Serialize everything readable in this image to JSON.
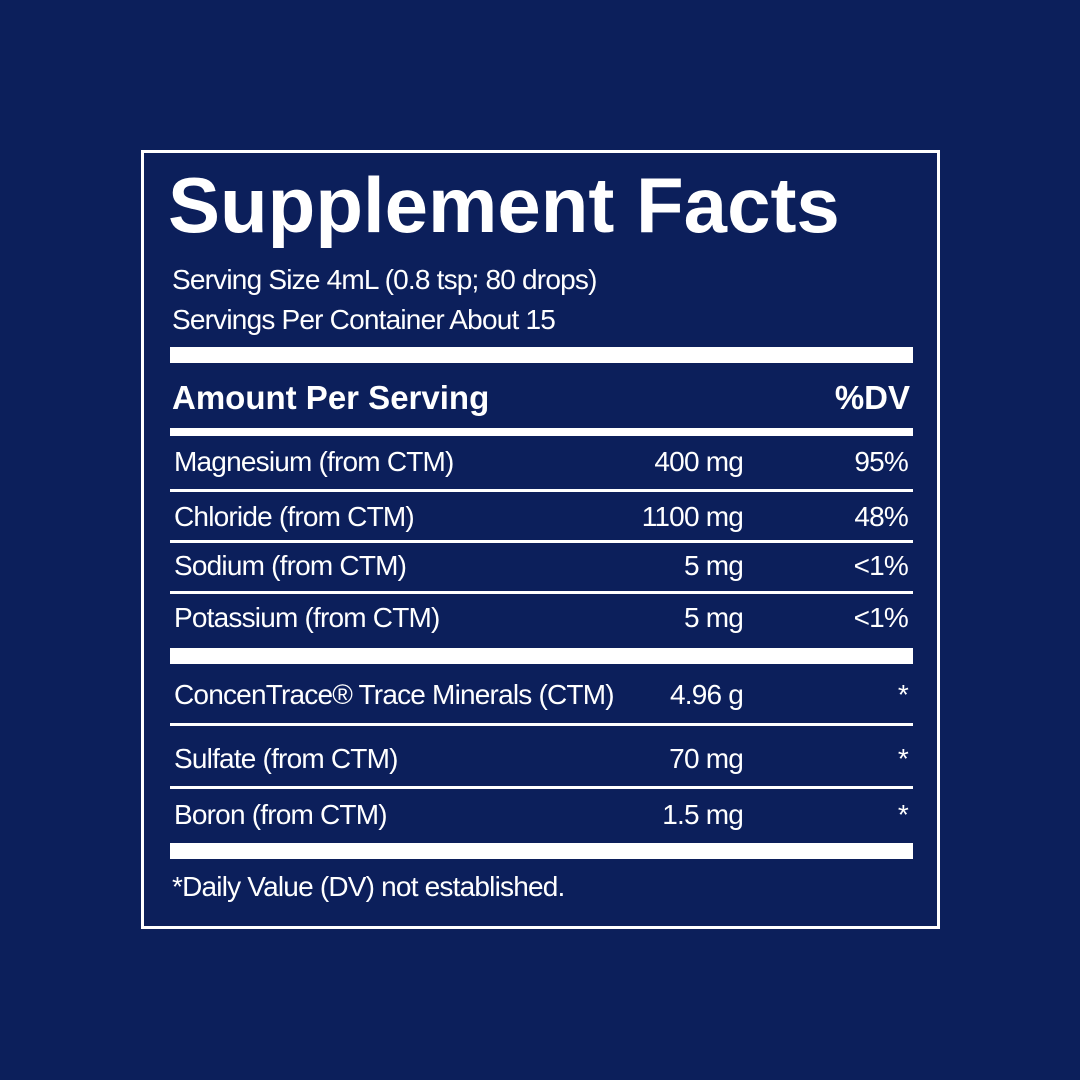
{
  "title": "Supplement Facts",
  "serving_size": "Serving Size 4mL (0.8 tsp; 80 drops)",
  "servings_per_container": "Servings Per Container About 15",
  "header": {
    "amount": "Amount Per Serving",
    "dv": "%DV"
  },
  "rows": [
    [
      "Magnesium (from CTM)",
      "400 mg",
      "95%"
    ],
    [
      "Chloride (from CTM)",
      "1100 mg",
      "48%"
    ],
    [
      "Sodium (from CTM)",
      "5 mg",
      "<1%"
    ],
    [
      "Potassium (from CTM)",
      "5 mg",
      "<1%"
    ],
    [
      "ConcenTrace® Trace Minerals (CTM)",
      "4.96 g",
      "*"
    ],
    [
      "Sulfate (from CTM)",
      "70 mg",
      "*"
    ],
    [
      "Boron (from CTM)",
      "1.5 mg",
      "*"
    ]
  ],
  "footnote": "*Daily Value (DV) not established."
}
